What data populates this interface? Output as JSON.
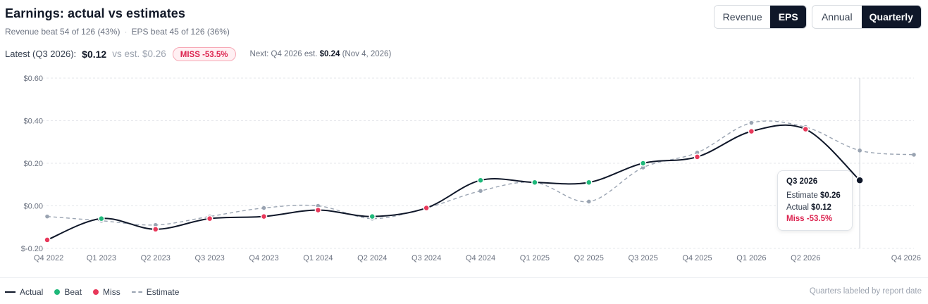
{
  "header": {
    "title": "Earnings: actual vs estimates",
    "subtitle_revenue": "Revenue beat 54 of 126 (43%)",
    "subtitle_sep": "·",
    "subtitle_eps": "EPS beat 45 of 126 (36%)"
  },
  "latest": {
    "label": "Latest (Q3 2026):",
    "actual": "$0.12",
    "estimate_text": "vs est. $0.26",
    "badge": "MISS -53.5%",
    "next_prefix": "Next: Q4 2026 est.",
    "next_value": "$0.24",
    "next_date": "(Nov 4, 2026)"
  },
  "controls": {
    "metric": {
      "options": [
        "Revenue",
        "EPS"
      ],
      "selected": "EPS"
    },
    "period": {
      "options": [
        "Annual",
        "Quarterly"
      ],
      "selected": "Quarterly"
    }
  },
  "tooltip": {
    "title": "Q3 2026",
    "estimate_label": "Estimate",
    "estimate_value": "$0.26",
    "actual_label": "Actual",
    "actual_value": "$0.12",
    "result": "Miss -53.5%"
  },
  "legend": {
    "actual": "Actual",
    "beat": "Beat",
    "miss": "Miss",
    "estimate": "Estimate"
  },
  "footnote": "Quarters labeled by report date",
  "colors": {
    "actual_line": "#0f1729",
    "estimate_line": "#9aa4b2",
    "beat": "#1fb87a",
    "miss": "#e8385a",
    "grid": "#e5e7eb"
  },
  "chart_data": {
    "type": "line",
    "title": "Earnings: actual vs estimates",
    "xlabel": "",
    "ylabel": "",
    "ylim": [
      -0.2,
      0.6
    ],
    "y_ticks": [
      -0.2,
      0.0,
      0.2,
      0.4,
      0.6
    ],
    "y_tick_labels": [
      "$-0.20",
      "$0.00",
      "$0.20",
      "$0.40",
      "$0.60"
    ],
    "grid": true,
    "categories": [
      "Q4 2022",
      "Q1 2023",
      "Q2 2023",
      "Q3 2023",
      "Q4 2023",
      "Q1 2024",
      "Q2 2024",
      "Q3 2024",
      "Q4 2024",
      "Q1 2025",
      "Q2 2025",
      "Q3 2025",
      "Q4 2025",
      "Q1 2026",
      "Q2 2026",
      "Q3 2026",
      "Q4 2026"
    ],
    "x_tick_labels": [
      "Q4 2022",
      "Q1 2023",
      "Q2 2023",
      "Q3 2023",
      "Q4 2023",
      "Q1 2024",
      "Q2 2024",
      "Q3 2024",
      "Q4 2024",
      "Q1 2025",
      "Q2 2025",
      "Q3 2025",
      "Q4 2025",
      "Q1 2026",
      "Q2 2026",
      "",
      "Q4 2026"
    ],
    "series": [
      {
        "name": "Actual",
        "values": [
          -0.16,
          -0.06,
          -0.11,
          -0.06,
          -0.05,
          -0.02,
          -0.05,
          -0.01,
          0.12,
          0.11,
          0.11,
          0.2,
          0.23,
          0.35,
          0.36,
          0.12,
          null
        ],
        "outcome": [
          "miss",
          "beat",
          "miss",
          "miss",
          "miss",
          "miss",
          "beat",
          "miss",
          "beat",
          "beat",
          "beat",
          "beat",
          "miss",
          "miss",
          "miss",
          "miss",
          null
        ]
      },
      {
        "name": "Estimate",
        "values": [
          -0.05,
          -0.07,
          -0.09,
          -0.05,
          -0.01,
          0.0,
          -0.06,
          -0.01,
          0.07,
          0.11,
          0.02,
          0.18,
          0.25,
          0.39,
          0.37,
          0.26,
          0.24
        ]
      }
    ],
    "highlight_category": "Q3 2026"
  }
}
